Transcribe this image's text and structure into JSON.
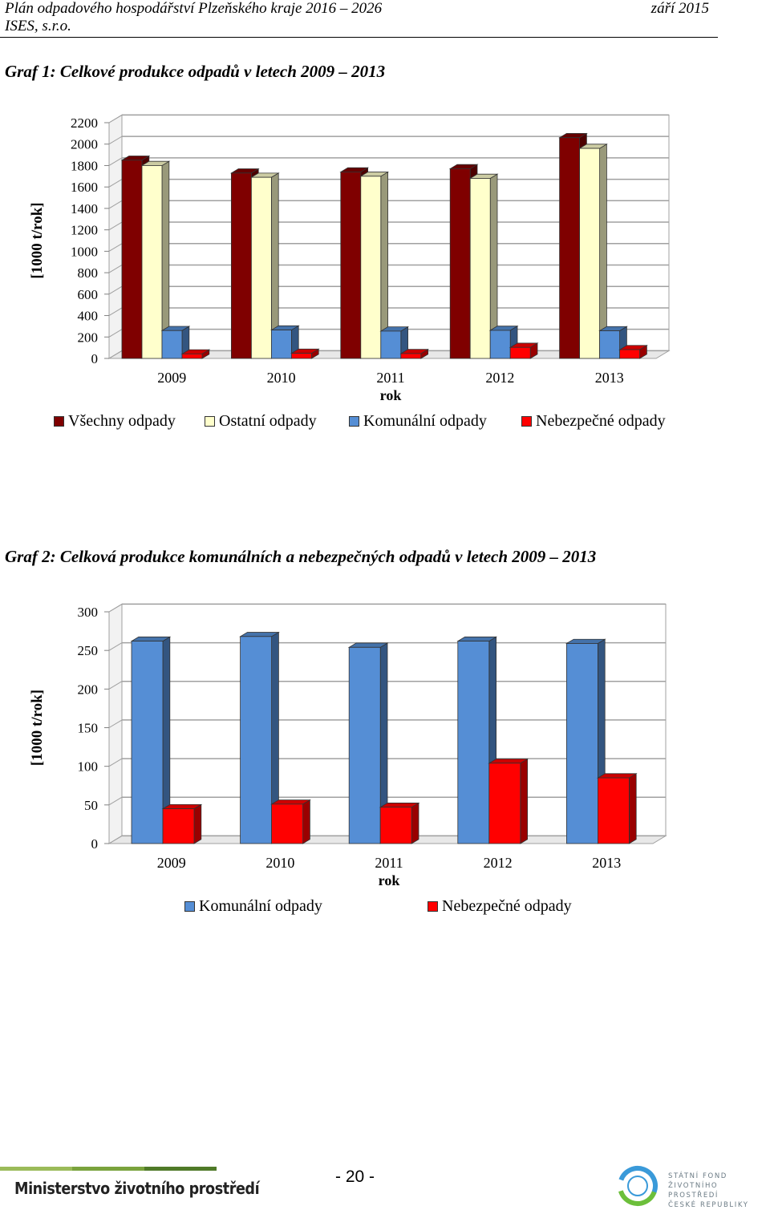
{
  "header": {
    "title": "Plán odpadového hospodářství Plzeňského kraje 2016 – 2026",
    "company": "ISES, s.r.o.",
    "date": "září 2015"
  },
  "figure1": {
    "title": "Graf 1: Celkové produkce odpadů v letech 2009 – 2013"
  },
  "figure2": {
    "title": "Graf 2: Celková produkce komunálních a nebezpečných odpadů v letech 2009 – 2013"
  },
  "colors": {
    "vsechny": "#7f0000",
    "ostatni": "#ffffcc",
    "komunalni": "#558ed5",
    "nebezpecne": "#ff0000"
  },
  "chart_data": [
    {
      "type": "bar",
      "title": "Graf 1: Celkové produkce odpadů v letech 2009 – 2013",
      "xlabel": "rok",
      "ylabel": "[1000 t/rok]",
      "categories": [
        "2009",
        "2010",
        "2011",
        "2012",
        "2013"
      ],
      "ylim": [
        0,
        2200
      ],
      "yticks": [
        "0",
        "200",
        "400",
        "600",
        "800",
        "1000",
        "1200",
        "1400",
        "1600",
        "1800",
        "2000",
        "2200"
      ],
      "legend": "bottom",
      "grid": true,
      "series": [
        {
          "name": "Všechny odpady",
          "values": [
            1850,
            1730,
            1740,
            1770,
            2060
          ]
        },
        {
          "name": "Ostatní odpady",
          "values": [
            1800,
            1690,
            1700,
            1680,
            1960
          ]
        },
        {
          "name": "Komunální odpady",
          "values": [
            260,
            265,
            255,
            262,
            258
          ]
        },
        {
          "name": "Nebezpečné odpady",
          "values": [
            42,
            48,
            45,
            103,
            82
          ]
        }
      ]
    },
    {
      "type": "bar",
      "title": "Graf 2: Celková produkce komunálních a nebezpečných odpadů v letech 2009 – 2013",
      "xlabel": "rok",
      "ylabel": "[1000 t/rok]",
      "categories": [
        "2009",
        "2010",
        "2011",
        "2012",
        "2013"
      ],
      "ylim": [
        0,
        300
      ],
      "yticks": [
        "0",
        "50",
        "100",
        "150",
        "200",
        "250",
        "300"
      ],
      "legend": "bottom",
      "grid": true,
      "series": [
        {
          "name": "Komunální odpady",
          "values": [
            262,
            268,
            254,
            262,
            259
          ]
        },
        {
          "name": "Nebezpečné odpady",
          "values": [
            45,
            51,
            47,
            104,
            85
          ]
        }
      ]
    }
  ],
  "footer": {
    "ministry": "Ministerstvo životního prostředí",
    "page": "- 20 -",
    "sfzp_lines": [
      "STÁTNÍ FOND",
      "ŽIVOTNÍHO PROSTŘEDÍ",
      "ČESKÉ REPUBLIKY"
    ]
  }
}
